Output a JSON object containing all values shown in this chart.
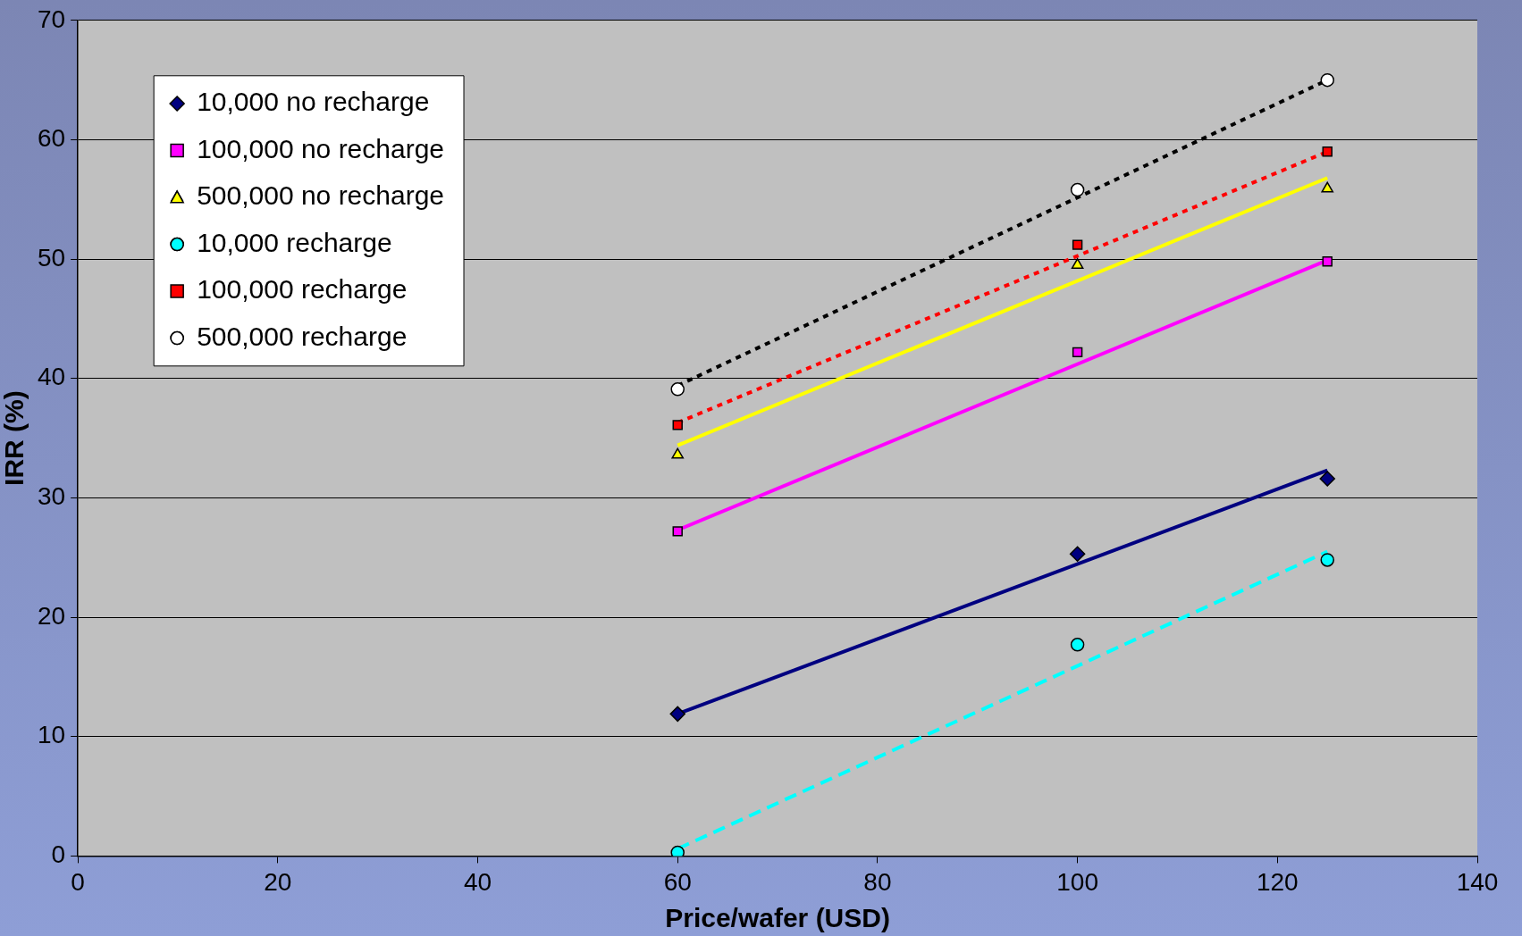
{
  "chart_data": {
    "type": "scatter",
    "xlabel": "Price/wafer (USD)",
    "ylabel": "IRR (%)",
    "xlim": [
      0,
      140
    ],
    "xticks": [
      0,
      20,
      40,
      60,
      80,
      100,
      120,
      140
    ],
    "ylim": [
      0,
      70
    ],
    "yticks": [
      0,
      10,
      20,
      30,
      40,
      50,
      60,
      70
    ],
    "grid": "y",
    "legend": "top left",
    "series": [
      {
        "name": "10,000 no recharge",
        "color": "#000080",
        "marker": "diamond",
        "x": [
          60,
          100,
          125
        ],
        "values": [
          11.9,
          25.3,
          31.6
        ]
      },
      {
        "name": "100,000 no recharge",
        "color": "#ff00ff",
        "marker": "square",
        "x": [
          60,
          100,
          125
        ],
        "values": [
          27.2,
          42.2,
          49.8
        ]
      },
      {
        "name": "500,000 no recharge",
        "color": "#ffff00",
        "marker": "triangle",
        "x": [
          60,
          100,
          125
        ],
        "values": [
          33.6,
          49.5,
          55.9
        ]
      },
      {
        "name": "10,000 recharge",
        "color": "#00ffff",
        "marker": "circle",
        "x": [
          60,
          100,
          125
        ],
        "values": [
          0.3,
          17.7,
          24.8
        ]
      },
      {
        "name": "100,000 recharge",
        "color": "#ff0000",
        "marker": "square",
        "x": [
          60,
          100,
          125
        ],
        "values": [
          36.1,
          51.2,
          59.0
        ]
      },
      {
        "name": "500,000 recharge",
        "color": "#ffffff",
        "marker": "circle",
        "x": [
          60,
          100,
          125
        ],
        "values": [
          39.1,
          55.8,
          65.0
        ]
      },
      {
        "type": "line",
        "color": "#000080",
        "line_style": "solid",
        "marker": "none",
        "x": [
          60,
          125
        ],
        "values": [
          11.9,
          32.3
        ]
      },
      {
        "type": "line",
        "color": "#ff00ff",
        "line_style": "solid",
        "marker": "none",
        "x": [
          60,
          125
        ],
        "values": [
          27.3,
          49.9
        ]
      },
      {
        "type": "line",
        "color": "#ffff00",
        "line_style": "solid",
        "marker": "none",
        "x": [
          60,
          125
        ],
        "values": [
          34.4,
          56.8
        ]
      },
      {
        "type": "line",
        "color": "#00ffff",
        "line_style": "dashed",
        "marker": "none",
        "x": [
          60,
          125
        ],
        "values": [
          0.6,
          25.5
        ]
      },
      {
        "type": "line",
        "color": "#ff0000",
        "line_style": "dotted",
        "marker": "none",
        "x": [
          60,
          125
        ],
        "values": [
          36.3,
          59.0
        ]
      },
      {
        "type": "line",
        "color": "#000000",
        "line_style": "dotted",
        "marker": "none",
        "x": [
          60,
          125
        ],
        "values": [
          39.4,
          65.0
        ]
      }
    ]
  }
}
